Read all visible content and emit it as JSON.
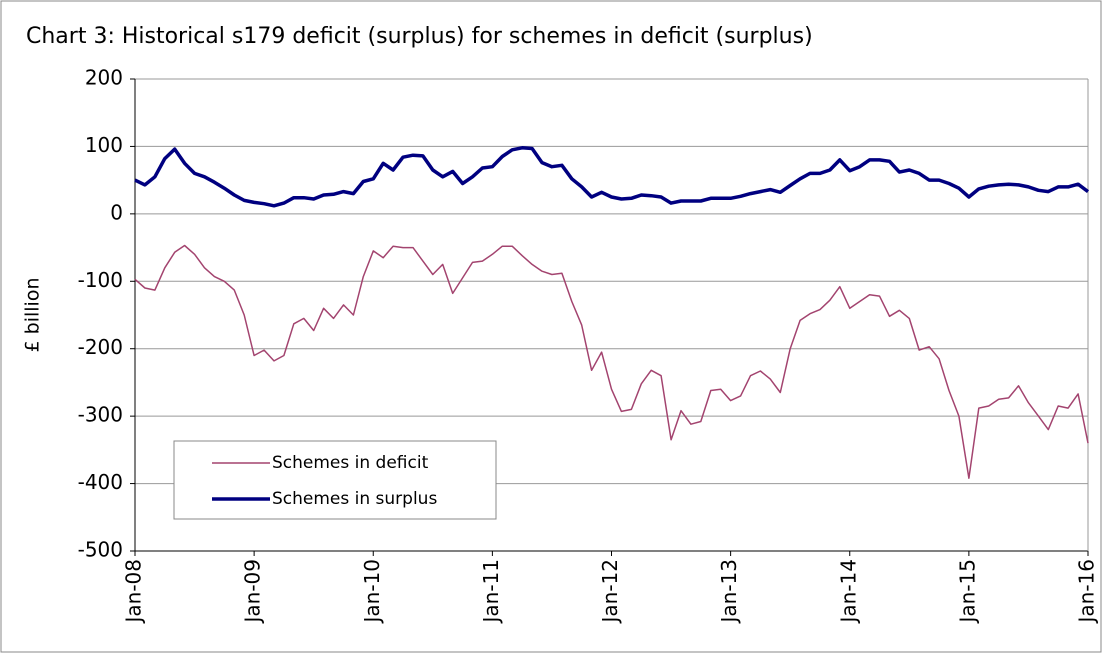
{
  "chart_data": {
    "type": "line",
    "title": "Chart 3: Historical s179 deficit (surplus) for schemes in deficit (surplus)",
    "ylabel": "£ billion",
    "categories": [
      "Jan-08",
      null,
      null,
      null,
      null,
      null,
      null,
      null,
      null,
      null,
      null,
      null,
      "Jan-09",
      null,
      null,
      null,
      null,
      null,
      null,
      null,
      null,
      null,
      null,
      null,
      "Jan-10",
      null,
      null,
      null,
      null,
      null,
      null,
      null,
      null,
      null,
      null,
      null,
      "Jan-11",
      null,
      null,
      null,
      null,
      null,
      null,
      null,
      null,
      null,
      null,
      null,
      "Jan-12",
      null,
      null,
      null,
      null,
      null,
      null,
      null,
      null,
      null,
      null,
      null,
      "Jan-13",
      null,
      null,
      null,
      null,
      null,
      null,
      null,
      null,
      null,
      null,
      null,
      "Jan-14",
      null,
      null,
      null,
      null,
      null,
      null,
      null,
      null,
      null,
      null,
      null,
      "Jan-15",
      null,
      null,
      null,
      null,
      null,
      null,
      null,
      null,
      null,
      null,
      null,
      "Jan-16"
    ],
    "series": [
      {
        "name": "Schemes in deficit",
        "color": "#a3446f",
        "width": 1.5,
        "values": [
          -97,
          -110,
          -113,
          -80,
          -57,
          -47,
          -60,
          -80,
          -93,
          -100,
          -113,
          -150,
          -210,
          -202,
          -218,
          -210,
          -163,
          -155,
          -173,
          -140,
          -155,
          -135,
          -150,
          -93,
          -55,
          -65,
          -48,
          -50,
          -50,
          -70,
          -90,
          -75,
          -118,
          -95,
          -72,
          -70,
          -60,
          -48,
          -48,
          -62,
          -75,
          -85,
          -90,
          -88,
          -130,
          -165,
          -232,
          -205,
          -260,
          -293,
          -290,
          -252,
          -232,
          -240,
          -335,
          -292,
          -312,
          -308,
          -262,
          -260,
          -277,
          -270,
          -240,
          -233,
          -245,
          -265,
          -200,
          -158,
          -148,
          -142,
          -128,
          -108,
          -140,
          -130,
          -120,
          -122,
          -152,
          -143,
          -155,
          -202,
          -197,
          -215,
          -262,
          -300,
          -392,
          -288,
          -285,
          -275,
          -273,
          -255,
          -280,
          -300,
          -320,
          -285,
          -288,
          -267,
          -340
        ]
      },
      {
        "name": "Schemes in surplus",
        "color": "#000080",
        "width": 3.5,
        "values": [
          50,
          43,
          55,
          82,
          96,
          75,
          60,
          55,
          47,
          38,
          28,
          20,
          17,
          15,
          12,
          16,
          24,
          24,
          22,
          28,
          29,
          33,
          30,
          48,
          52,
          75,
          65,
          84,
          87,
          86,
          65,
          55,
          63,
          45,
          55,
          68,
          70,
          85,
          95,
          98,
          97,
          76,
          70,
          72,
          52,
          40,
          25,
          32,
          25,
          22,
          23,
          28,
          27,
          25,
          16,
          19,
          19,
          19,
          23,
          23,
          23,
          26,
          30,
          33,
          36,
          32,
          42,
          52,
          60,
          60,
          65,
          80,
          64,
          70,
          80,
          80,
          78,
          62,
          65,
          60,
          50,
          50,
          45,
          38,
          25,
          37,
          41,
          43,
          44,
          43,
          40,
          35,
          33,
          40,
          40,
          44,
          33
        ]
      }
    ],
    "ylim": [
      -500,
      200
    ],
    "yticks": [
      200,
      100,
      0,
      -100,
      -200,
      -300,
      -400,
      -500
    ],
    "grid": true
  }
}
